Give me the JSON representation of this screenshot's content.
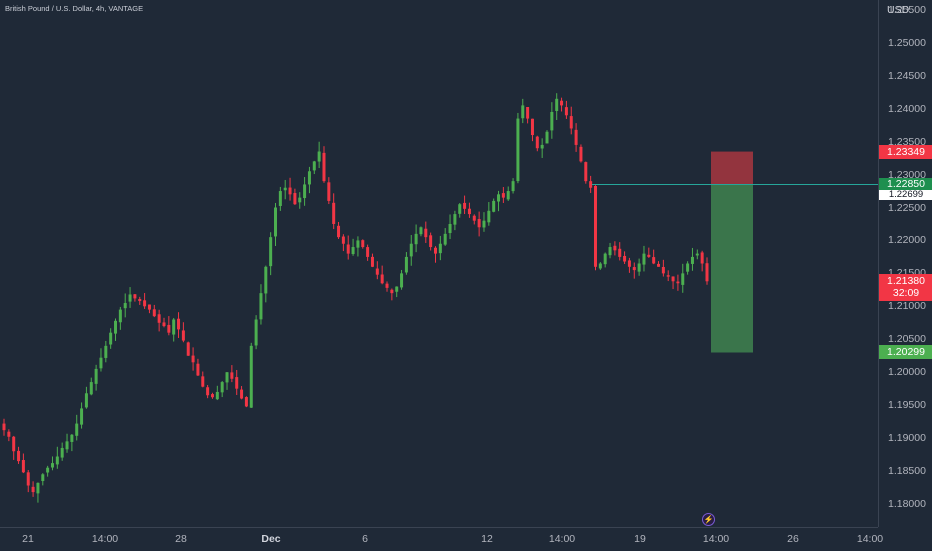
{
  "header": {
    "title": "British Pound / U.S. Dollar, 4h, VANTAGE"
  },
  "price_axis": {
    "currency": "USD",
    "ticks": [
      "1.25500",
      "1.25000",
      "1.24500",
      "1.24000",
      "1.23500",
      "1.23000",
      "1.22500",
      "1.22000",
      "1.21500",
      "1.21000",
      "1.20500",
      "1.20000",
      "1.19500",
      "1.19000",
      "1.18500",
      "1.18000"
    ],
    "tick_values": [
      1.255,
      1.25,
      1.245,
      1.24,
      1.235,
      1.23,
      1.225,
      1.22,
      1.215,
      1.21,
      1.205,
      1.2,
      1.195,
      1.19,
      1.185,
      1.18
    ]
  },
  "time_axis": {
    "ticks": [
      {
        "label": "21",
        "bold": false
      },
      {
        "label": "14:00",
        "bold": false
      },
      {
        "label": "28",
        "bold": false
      },
      {
        "label": "Dec",
        "bold": true
      },
      {
        "label": "6",
        "bold": false
      },
      {
        "label": "12",
        "bold": false
      },
      {
        "label": "14:00",
        "bold": false
      },
      {
        "label": "19",
        "bold": false
      },
      {
        "label": "14:00",
        "bold": false
      },
      {
        "label": "26",
        "bold": false
      },
      {
        "label": "14:00",
        "bold": false
      }
    ]
  },
  "price_tags": {
    "stop_loss": {
      "label": "1.23349",
      "value": 1.23349,
      "color": "#f23645"
    },
    "entry": {
      "label": "1.22850",
      "value": 1.2285,
      "color": "#26a69a"
    },
    "ask": {
      "label": "1.22699",
      "value": 1.22699,
      "color": "#ffffff"
    },
    "current": {
      "label": "1.21380",
      "countdown": "32:09",
      "value": 1.2138,
      "color": "#f23645"
    },
    "take_profit": {
      "label": "1.20299",
      "value": 1.20299,
      "color": "#4caf50"
    }
  },
  "position_tool": {
    "entry": 1.2285,
    "stop": 1.23349,
    "target": 1.20299,
    "profit_color": "#3d7d4e",
    "loss_color": "#a8363f"
  },
  "colors": {
    "up": "#4caf50",
    "down": "#f23645",
    "background": "#1f2937"
  },
  "icons": {
    "events": "lightning-icon"
  },
  "chart_data": {
    "type": "candlestick",
    "symbol": "British Pound / U.S. Dollar",
    "interval": "4h",
    "exchange": "VANTAGE",
    "ylim": [
      1.1765,
      1.2565
    ],
    "close": [
      1.1912,
      1.1902,
      1.188,
      1.1865,
      1.1848,
      1.1828,
      1.1818,
      1.1832,
      1.1845,
      1.1855,
      1.1862,
      1.1872,
      1.1885,
      1.1895,
      1.1905,
      1.1922,
      1.1945,
      1.1968,
      1.1985,
      1.2005,
      1.2022,
      1.204,
      1.206,
      1.2078,
      1.2095,
      1.2105,
      1.2118,
      1.2112,
      1.2108,
      1.21,
      1.2095,
      1.2085,
      1.2075,
      1.207,
      1.206,
      1.208,
      1.2065,
      1.2048,
      1.2025,
      1.2015,
      1.1995,
      1.1978,
      1.1965,
      1.1962,
      1.197,
      1.1985,
      1.2,
      1.199,
      1.1975,
      1.196,
      1.1948,
      1.204,
      1.208,
      1.212,
      1.216,
      1.2205,
      1.225,
      1.2275,
      1.228,
      1.227,
      1.2255,
      1.2265,
      1.2285,
      1.2305,
      1.232,
      1.2335,
      1.229,
      1.226,
      1.2225,
      1.2205,
      1.2195,
      1.218,
      1.219,
      1.22,
      1.219,
      1.2175,
      1.216,
      1.2148,
      1.2135,
      1.2128,
      1.212,
      1.213,
      1.215,
      1.2175,
      1.2195,
      1.221,
      1.222,
      1.2205,
      1.219,
      1.218,
      1.2195,
      1.221,
      1.2225,
      1.224,
      1.2255,
      1.2248,
      1.224,
      1.223,
      1.222,
      1.223,
      1.2245,
      1.226,
      1.227,
      1.2265,
      1.2275,
      1.229,
      1.2385,
      1.2405,
      1.2385,
      1.236,
      1.234,
      1.2345,
      1.2365,
      1.2395,
      1.2415,
      1.2405,
      1.239,
      1.237,
      1.2345,
      1.232,
      1.229,
      1.228,
      1.216,
      1.2165,
      1.218,
      1.219,
      1.2185,
      1.2175,
      1.2168,
      1.216,
      1.2155,
      1.2165,
      1.218,
      1.2175,
      1.2165,
      1.216,
      1.215,
      1.2145,
      1.2138,
      1.2135,
      1.215,
      1.2165,
      1.2175,
      1.218,
      1.2165,
      1.2138
    ]
  }
}
